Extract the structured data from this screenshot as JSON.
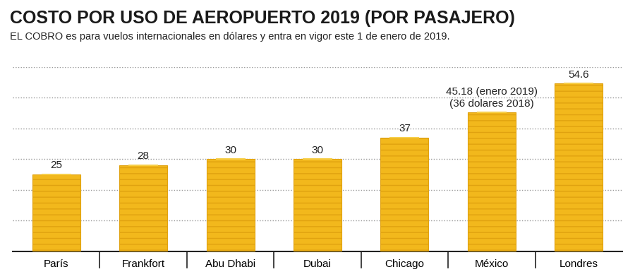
{
  "chart_data": {
    "type": "bar",
    "title": "COSTO POR USO DE AEROPUERTO 2019 (POR PASAJERO)",
    "subtitle": "EL COBRO es para vuelos internacionales en dólares y entra en vigor este 1 de enero de 2019.",
    "categories": [
      "París",
      "Frankfort",
      "Abu Dhabi",
      "Dubai",
      "Chicago",
      "México",
      "Londres"
    ],
    "values": [
      25,
      28,
      30,
      30,
      37,
      45.18,
      54.6
    ],
    "value_labels": [
      "25",
      "28",
      "30",
      "30",
      "37",
      "45.18 (enero 2019)\n(36 dolares 2018)",
      "54.6"
    ],
    "data_labels": true,
    "color": "#f2b81c",
    "ylim": [
      0,
      60
    ],
    "yticks": [
      0,
      10,
      20,
      30,
      40,
      50,
      60
    ],
    "grid": true,
    "tick_labels": "x"
  }
}
